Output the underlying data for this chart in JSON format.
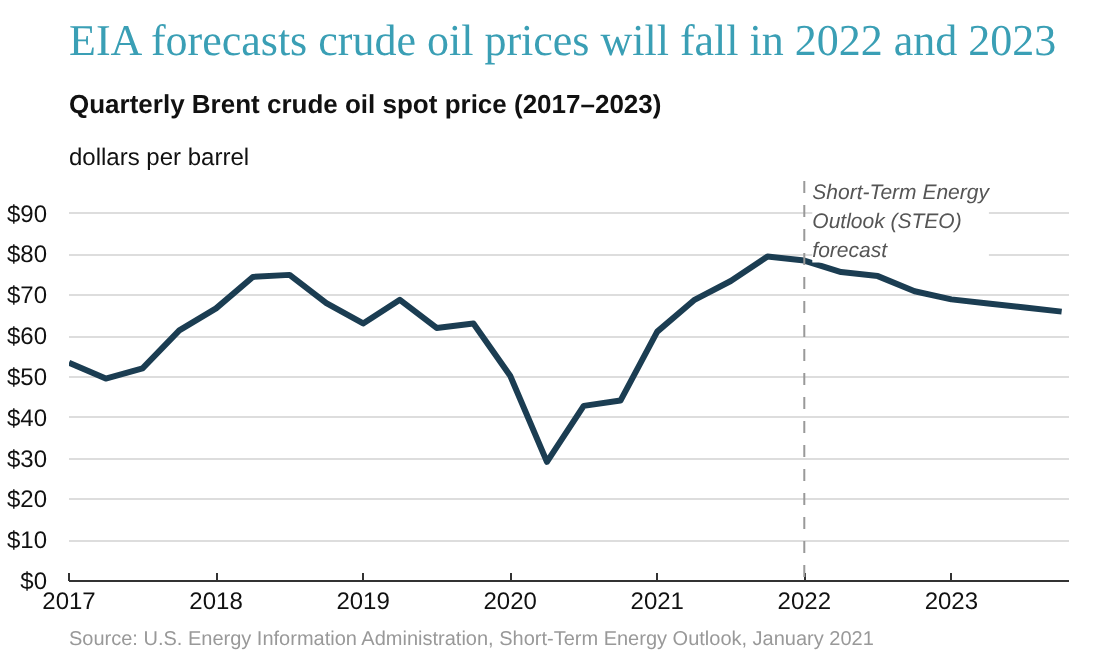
{
  "chart_data": {
    "type": "line",
    "title": "EIA forecasts crude oil prices will fall in 2022 and 2023",
    "subtitle": "Quarterly Brent crude oil spot price (2017–2023)",
    "ylabel": "dollars per barrel",
    "x": [
      2017,
      2017.25,
      2017.5,
      2017.75,
      2018,
      2018.25,
      2018.5,
      2018.75,
      2019,
      2019.25,
      2019.5,
      2019.75,
      2020,
      2020.25,
      2020.5,
      2020.75,
      2021,
      2021.25,
      2021.5,
      2021.75,
      2022,
      2022.25,
      2022.5,
      2022.75,
      2023,
      2023.25,
      2023.5,
      2023.75
    ],
    "series": [
      {
        "color": "#1b3d52",
        "values": [
          53.5,
          49.6,
          52.1,
          61.4,
          66.8,
          74.5,
          75.0,
          68.1,
          63.1,
          68.9,
          62.0,
          63.1,
          50.3,
          29.2,
          42.9,
          44.2,
          61.1,
          68.8,
          73.5,
          79.5,
          78.5,
          75.7,
          74.7,
          71.0,
          69.0,
          68.0,
          67.0,
          66.0
        ]
      }
    ],
    "xlim": [
      2017,
      2023.8
    ],
    "xticks": [
      2017,
      2018,
      2019,
      2020,
      2021,
      2022,
      2023
    ],
    "ylim": [
      0,
      98
    ],
    "yticks": [
      {
        "value": 0,
        "label": "$0"
      },
      {
        "value": 10,
        "label": "$10"
      },
      {
        "value": 20,
        "label": "$20"
      },
      {
        "value": 30,
        "label": "$30"
      },
      {
        "value": 40,
        "label": "$40"
      },
      {
        "value": 50,
        "label": "$50"
      },
      {
        "value": 60,
        "label": "$60"
      },
      {
        "value": 70,
        "label": "$70"
      },
      {
        "value": 80,
        "label": "$80"
      },
      {
        "value": 90,
        "label": "$90"
      }
    ],
    "grid": "y",
    "marker": "none",
    "line_style": "solid",
    "ref_lines": [
      {
        "axis": "x",
        "value": 2022,
        "label": "Short-Term Energy\nOutlook (STEO)\nforecast",
        "color": "#999999",
        "line_style": "dashed"
      }
    ],
    "annotations": [
      "Source: U.S. Energy Information Administration, Short-Term Energy Outlook, January 2021"
    ]
  }
}
